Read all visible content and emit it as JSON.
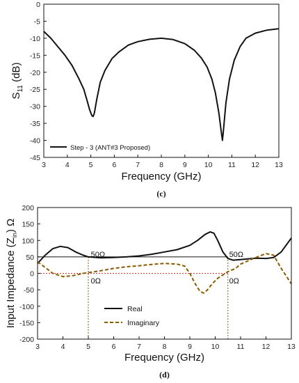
{
  "chart_data": [
    {
      "type": "line",
      "caption": "(c)",
      "xlabel": "Frequency (GHz)",
      "ylabel": "S11 (dB)",
      "ylabel_main": "S",
      "ylabel_sub": "11",
      "ylabel_rest": " (dB)",
      "xlim": [
        3,
        13
      ],
      "ylim": [
        -45,
        0
      ],
      "xticks": [
        "3",
        "4",
        "5",
        "6",
        "7",
        "8",
        "9",
        "10",
        "11",
        "12",
        "13"
      ],
      "yticks": [
        "0",
        "-5",
        "-10",
        "-15",
        "-20",
        "-25",
        "-30",
        "-35",
        "-40",
        "-45"
      ],
      "grid": false,
      "legend_position": "bottom-left",
      "series": [
        {
          "name": "Step - 3 (ANT#3 Proposed)",
          "color": "#111111",
          "x": [
            3.0,
            3.3,
            3.6,
            3.9,
            4.2,
            4.5,
            4.7,
            4.85,
            4.95,
            5.05,
            5.1,
            5.15,
            5.25,
            5.4,
            5.6,
            5.9,
            6.2,
            6.6,
            7.0,
            7.5,
            8.0,
            8.5,
            9.0,
            9.4,
            9.7,
            9.95,
            10.15,
            10.3,
            10.45,
            10.55,
            10.6,
            10.65,
            10.75,
            10.9,
            11.1,
            11.35,
            11.6,
            12.0,
            12.5,
            13.0
          ],
          "y": [
            -8.0,
            -10.0,
            -12.5,
            -15.0,
            -18.0,
            -22.0,
            -25.0,
            -28.5,
            -31.0,
            -32.8,
            -33.0,
            -32.0,
            -28.0,
            -23.0,
            -19.5,
            -16.0,
            -14.0,
            -12.0,
            -11.0,
            -10.3,
            -10.0,
            -10.4,
            -11.6,
            -13.5,
            -15.8,
            -18.5,
            -22.0,
            -26.0,
            -32.0,
            -37.5,
            -40.0,
            -36.5,
            -29.0,
            -22.0,
            -16.5,
            -12.5,
            -10.0,
            -8.5,
            -7.6,
            -7.2
          ]
        }
      ]
    },
    {
      "type": "line",
      "caption": "(d)",
      "xlabel": "Frequency (GHz)",
      "ylabel": "Input Impedance (Zin) Ω",
      "ylabel_main": "Input Impedance (Z",
      "ylabel_sub": "in",
      "ylabel_rest": ") Ω",
      "xlim": [
        3,
        13
      ],
      "ylim": [
        -200,
        200
      ],
      "xticks": [
        "3",
        "4",
        "5",
        "6",
        "7",
        "8",
        "9",
        "10",
        "11",
        "12",
        "13"
      ],
      "yticks": [
        "200",
        "150",
        "100",
        "50",
        "0",
        "-50",
        "-100",
        "-150",
        "-200"
      ],
      "grid": false,
      "legend_position": "bottom-center",
      "annotations": [
        {
          "text": "50Ω",
          "x": 5.1,
          "y": 58
        },
        {
          "text": "0Ω",
          "x": 5.1,
          "y": -22
        },
        {
          "text": "50Ω",
          "x": 10.55,
          "y": 58
        },
        {
          "text": "0Ω",
          "x": 10.55,
          "y": -22
        }
      ],
      "reference_lines": {
        "h50": {
          "y": 50,
          "x_from": 3,
          "x_to": 10.5,
          "color": "#111111"
        },
        "h0": {
          "y": 0,
          "x_from": 3,
          "x_to": 10.5,
          "color": "#c0392b"
        },
        "v1": {
          "x": 5,
          "y_from": -200,
          "y_to": 50,
          "color": "#8a5a00"
        },
        "v2": {
          "x": 10.5,
          "y_from": -200,
          "y_to": 50,
          "color": "#8a5a00"
        }
      },
      "series": [
        {
          "name": "Real",
          "color": "#111111",
          "dash": false,
          "x": [
            3.0,
            3.3,
            3.6,
            3.9,
            4.2,
            4.5,
            4.8,
            5.0,
            5.5,
            6.0,
            6.5,
            7.0,
            7.5,
            8.0,
            8.5,
            9.0,
            9.3,
            9.6,
            9.8,
            9.95,
            10.1,
            10.3,
            10.5,
            10.7,
            11.0,
            11.3,
            11.6,
            12.0,
            12.3,
            12.6,
            13.0
          ],
          "y": [
            30,
            55,
            75,
            82,
            78,
            65,
            55,
            50,
            47,
            48,
            50,
            53,
            58,
            65,
            72,
            85,
            100,
            118,
            126,
            122,
            100,
            65,
            45,
            40,
            42,
            44,
            46,
            45,
            48,
            65,
            107
          ]
        },
        {
          "name": "Imaginary",
          "color": "#8a5a00",
          "dash": true,
          "x": [
            3.0,
            3.3,
            3.6,
            4.0,
            4.4,
            4.8,
            5.0,
            5.5,
            6.0,
            6.5,
            7.0,
            7.5,
            8.0,
            8.5,
            8.8,
            9.0,
            9.2,
            9.4,
            9.55,
            9.7,
            9.9,
            10.1,
            10.3,
            10.5,
            10.8,
            11.0,
            11.5,
            12.0,
            12.3,
            12.6,
            13.0
          ],
          "y": [
            35,
            18,
            0,
            -10,
            -7,
            0,
            2,
            8,
            15,
            20,
            23,
            27,
            30,
            28,
            22,
            0,
            -30,
            -55,
            -60,
            -50,
            -30,
            -15,
            -5,
            5,
            15,
            28,
            45,
            60,
            55,
            15,
            -32
          ]
        }
      ]
    }
  ]
}
